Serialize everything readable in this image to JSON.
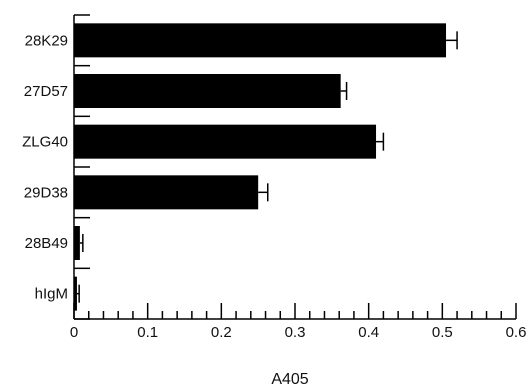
{
  "chart_data": {
    "type": "bar",
    "orientation": "horizontal",
    "categories": [
      "28K29",
      "27D57",
      "ZLG40",
      "29D38",
      "28B49",
      "hIgM"
    ],
    "values": [
      0.505,
      0.362,
      0.41,
      0.25,
      0.008,
      0.004
    ],
    "error": [
      0.015,
      0.008,
      0.01,
      0.013,
      0.004,
      0.003
    ],
    "xlabel": "A405",
    "ylabel": "",
    "title": "",
    "xlim": [
      0,
      0.6
    ],
    "xticks": [
      "0",
      "0.1",
      "0.2",
      "0.3",
      "0.4",
      "0.5",
      "0.6"
    ],
    "grid": false,
    "colors": {
      "bar": "#000000",
      "axis": "#000000"
    }
  }
}
